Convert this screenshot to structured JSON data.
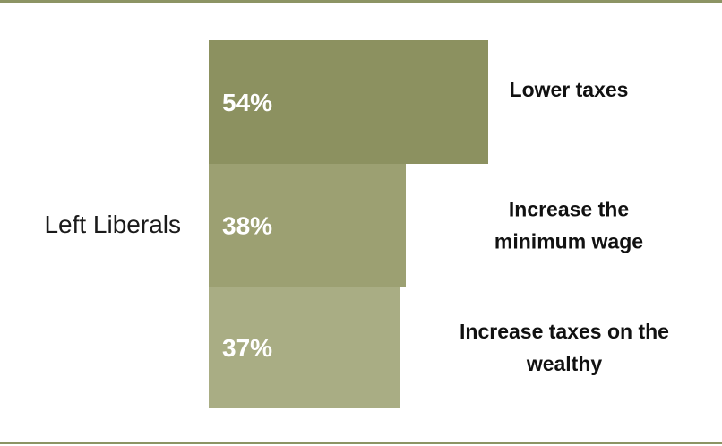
{
  "chart_data": {
    "type": "bar",
    "orientation": "horizontal",
    "group": "Left Liberals",
    "categories": [
      "Lower taxes",
      "Increase the minimum wage",
      "Increase taxes on the wealthy"
    ],
    "category_lines": [
      [
        "Lower taxes"
      ],
      [
        "Increase the",
        "minimum wage"
      ],
      [
        "Increase taxes on the",
        "wealthy"
      ]
    ],
    "values": [
      54,
      38,
      37
    ],
    "value_labels": [
      "54%",
      "38%",
      "37%"
    ],
    "colors": [
      "#8c9160",
      "#9ca072",
      "#a9ad84"
    ],
    "xlim": [
      0,
      54
    ]
  }
}
